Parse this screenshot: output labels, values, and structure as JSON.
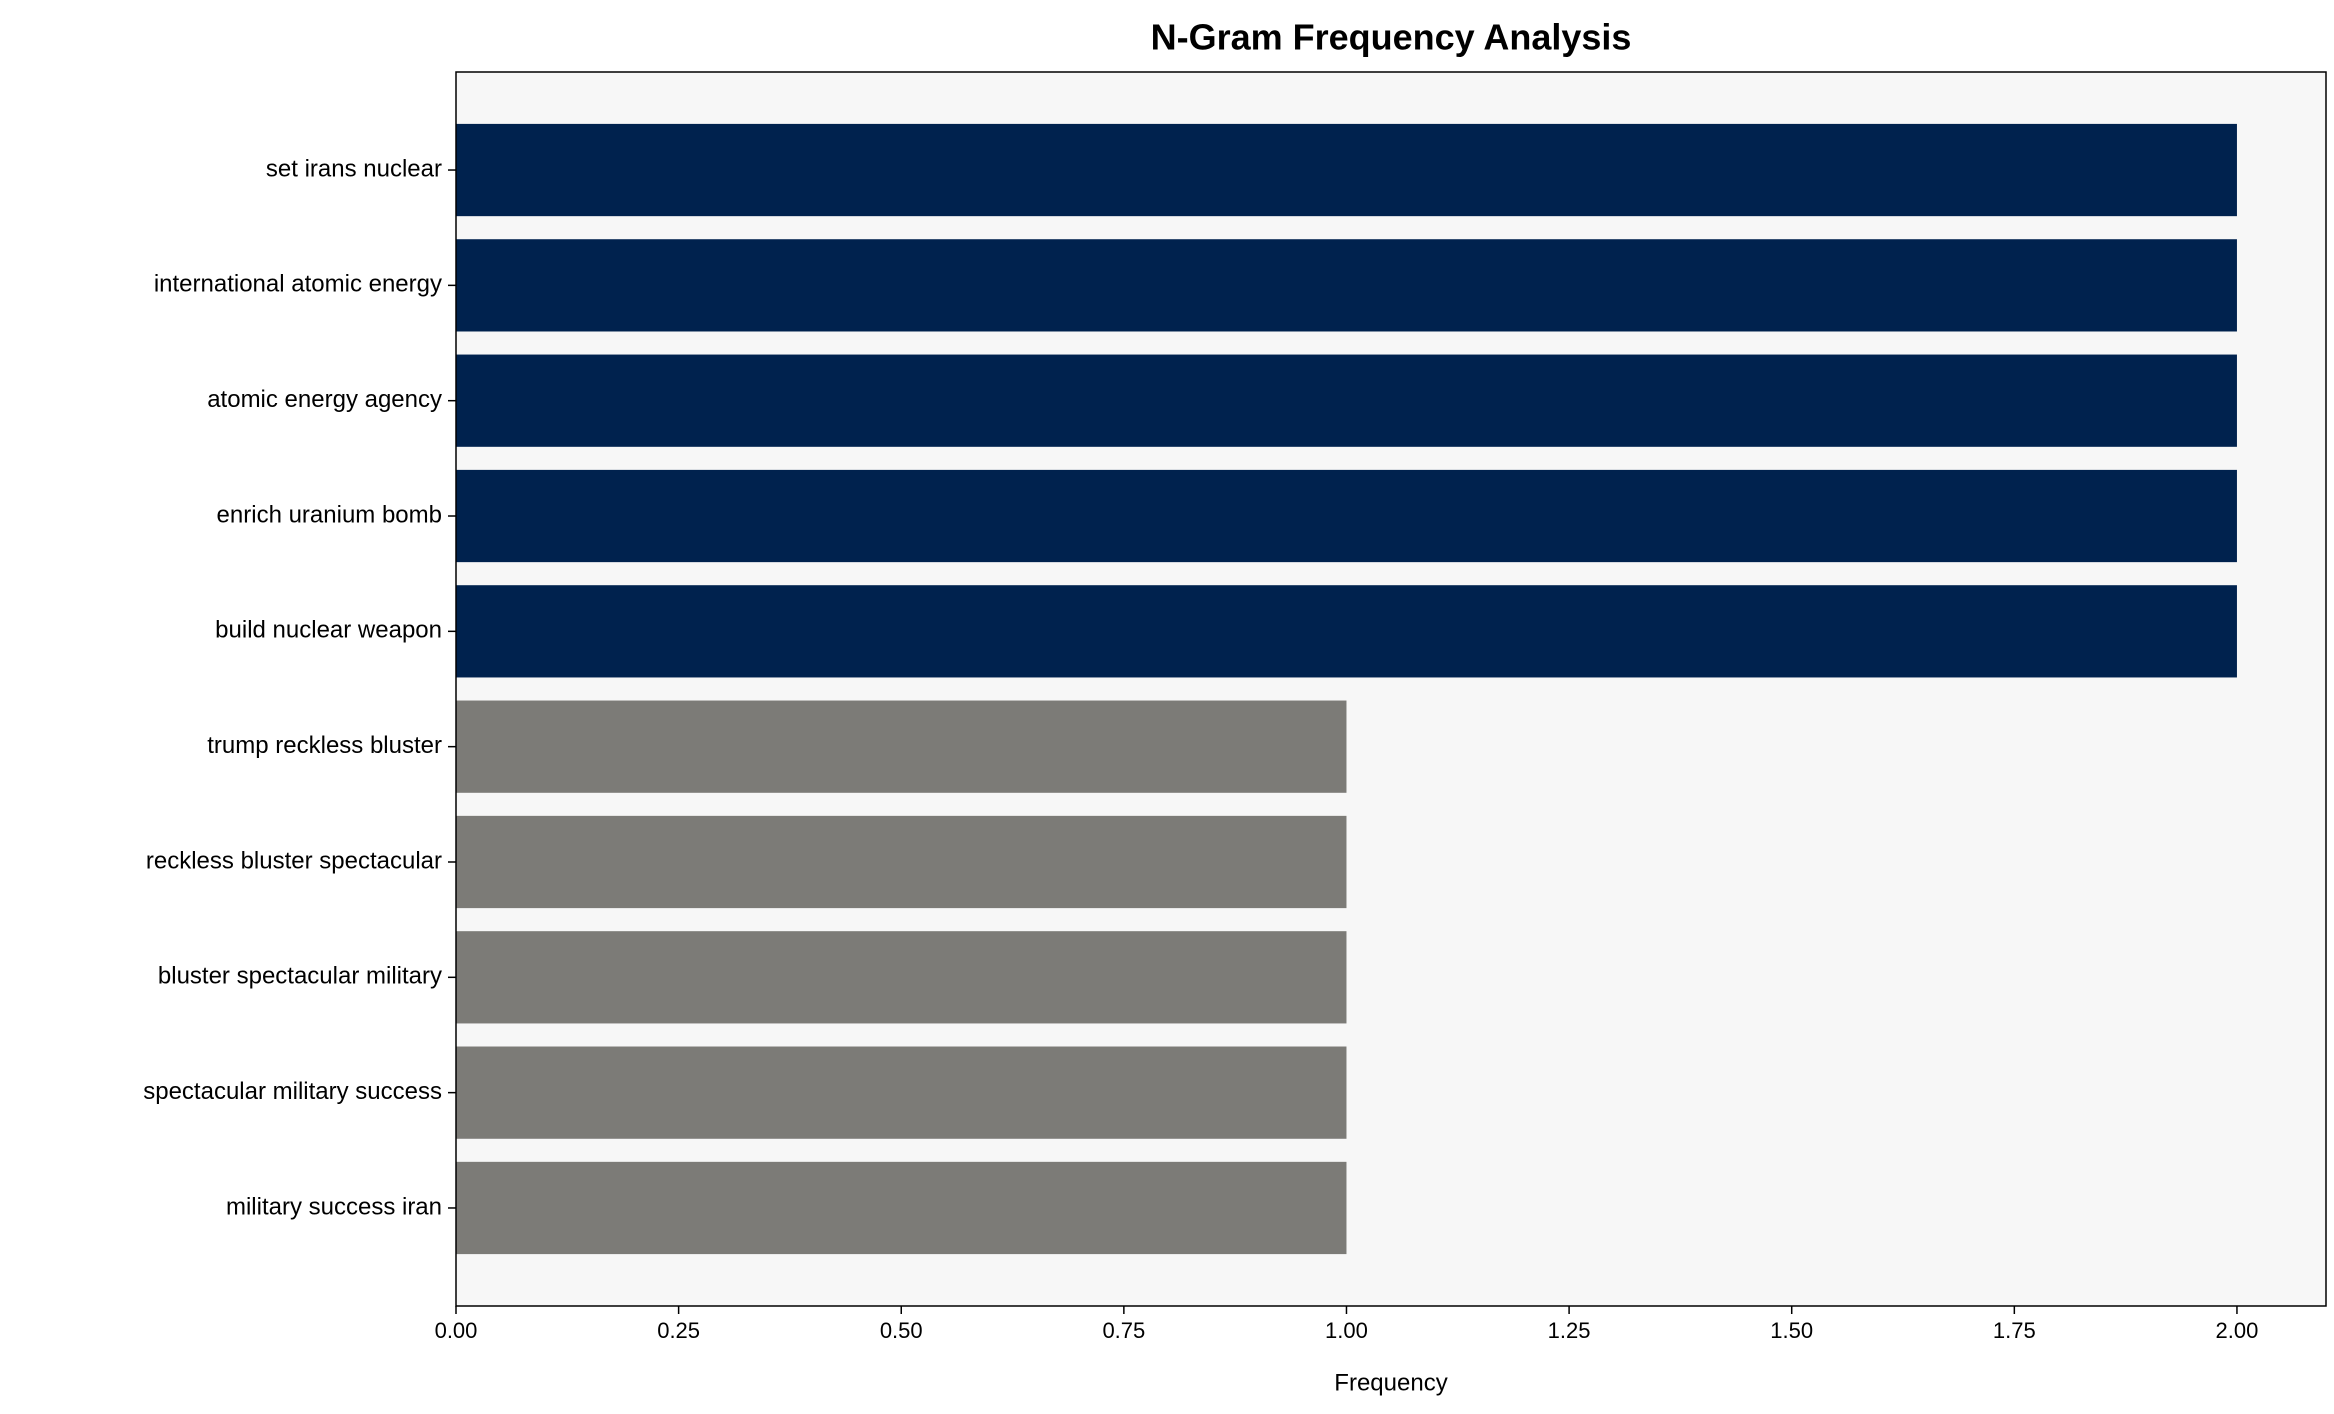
{
  "chart_data": {
    "type": "barh",
    "title": "N-Gram Frequency Analysis",
    "xlabel": "Frequency",
    "categories": [
      "set irans nuclear",
      "international atomic energy",
      "atomic energy agency",
      "enrich uranium bomb",
      "build nuclear weapon",
      "trump reckless bluster",
      "reckless bluster spectacular",
      "bluster spectacular military",
      "spectacular military success",
      "military success iran"
    ],
    "values": [
      2,
      2,
      2,
      2,
      2,
      1,
      1,
      1,
      1,
      1
    ],
    "colors": [
      "#00224e",
      "#00224e",
      "#00224e",
      "#00224e",
      "#00224e",
      "#7c7b77",
      "#7c7b77",
      "#7c7b77",
      "#7c7b77",
      "#7c7b77"
    ],
    "xlim": [
      0,
      2.1
    ],
    "xticks": [
      {
        "value": 0,
        "label": "0.00"
      },
      {
        "value": 0.25,
        "label": "0.25"
      },
      {
        "value": 0.5,
        "label": "0.50"
      },
      {
        "value": 0.75,
        "label": "0.75"
      },
      {
        "value": 1,
        "label": "1.00"
      },
      {
        "value": 1.25,
        "label": "1.25"
      },
      {
        "value": 1.5,
        "label": "1.50"
      },
      {
        "value": 1.75,
        "label": "1.75"
      },
      {
        "value": 2,
        "label": "2.00"
      }
    ],
    "grid": false
  }
}
